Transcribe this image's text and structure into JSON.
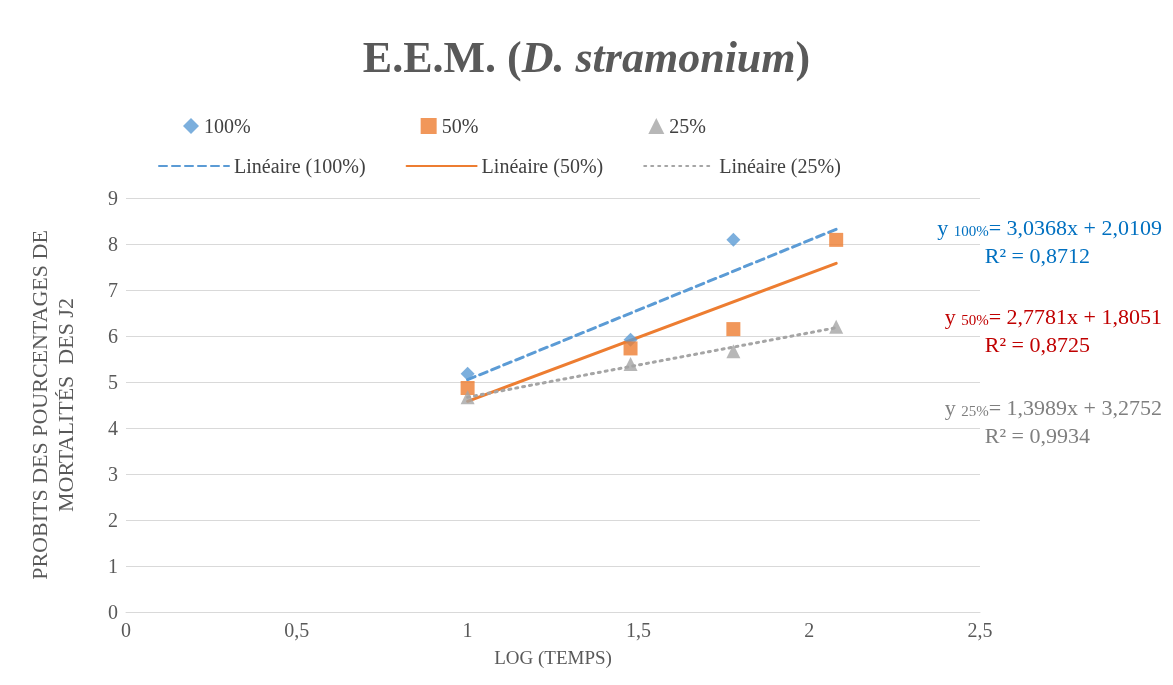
{
  "chart_data": {
    "type": "scatter",
    "title": "E.E.M. (D. stramonium)",
    "xlabel": "LOG (TEMPS)",
    "ylabel": "PROBITS DES POURCENTAGES DE\nMORTALITÉS  DES J2",
    "xlim": [
      0,
      2.5
    ],
    "xticks": [
      {
        "value": 0,
        "label": "0"
      },
      {
        "value": 0.5,
        "label": "0,5"
      },
      {
        "value": 1,
        "label": "1"
      },
      {
        "value": 1.5,
        "label": "1,5"
      },
      {
        "value": 2,
        "label": "2"
      },
      {
        "value": 2.5,
        "label": "2,5"
      }
    ],
    "ylim": [
      0,
      9
    ],
    "yticks": [
      0,
      1,
      2,
      3,
      4,
      5,
      6,
      7,
      8,
      9
    ],
    "grid": "y",
    "legend": "top",
    "series": [
      {
        "name": "100%",
        "type": "scatter",
        "marker": "diamond",
        "color": "#5b9bd5",
        "x": [
          1,
          1.477,
          1.778
        ],
        "values": [
          5.18,
          5.92,
          8.09
        ]
      },
      {
        "name": "50%",
        "type": "scatter",
        "marker": "square",
        "color": "#ed7d31",
        "x": [
          1,
          1.477,
          1.778,
          2.079
        ],
        "values": [
          4.87,
          5.73,
          6.15,
          8.09
        ]
      },
      {
        "name": "25%",
        "type": "scatter",
        "marker": "triangle",
        "color": "#a5a5a5",
        "x": [
          1,
          1.477,
          1.778,
          2.079
        ],
        "values": [
          4.67,
          5.39,
          5.67,
          6.2
        ]
      },
      {
        "name": "Linéaire (100%)",
        "type": "line",
        "line_style": "dashed",
        "color": "#5b9bd5",
        "x": [
          1,
          2.079
        ],
        "values": [
          5.05,
          8.32
        ]
      },
      {
        "name": "Linéaire (50%)",
        "type": "line",
        "line_style": "solid",
        "color": "#ed7d31",
        "x": [
          1,
          2.079
        ],
        "values": [
          4.58,
          7.58
        ]
      },
      {
        "name": "Linéaire (25%)",
        "type": "line",
        "line_style": "dotted",
        "color": "#a5a5a5",
        "x": [
          1,
          2.079
        ],
        "values": [
          4.67,
          6.18
        ]
      }
    ],
    "annotations": [
      "y $_{100%}$= 3,0368x + 2,0109",
      "R² = 0,8712",
      "y $_{50%}$= 2,7781x + 1,8051",
      "R² = 0,8725",
      "y $_{25%}$= 1,3989x + 3,2752",
      "R² = 0,9934"
    ]
  }
}
